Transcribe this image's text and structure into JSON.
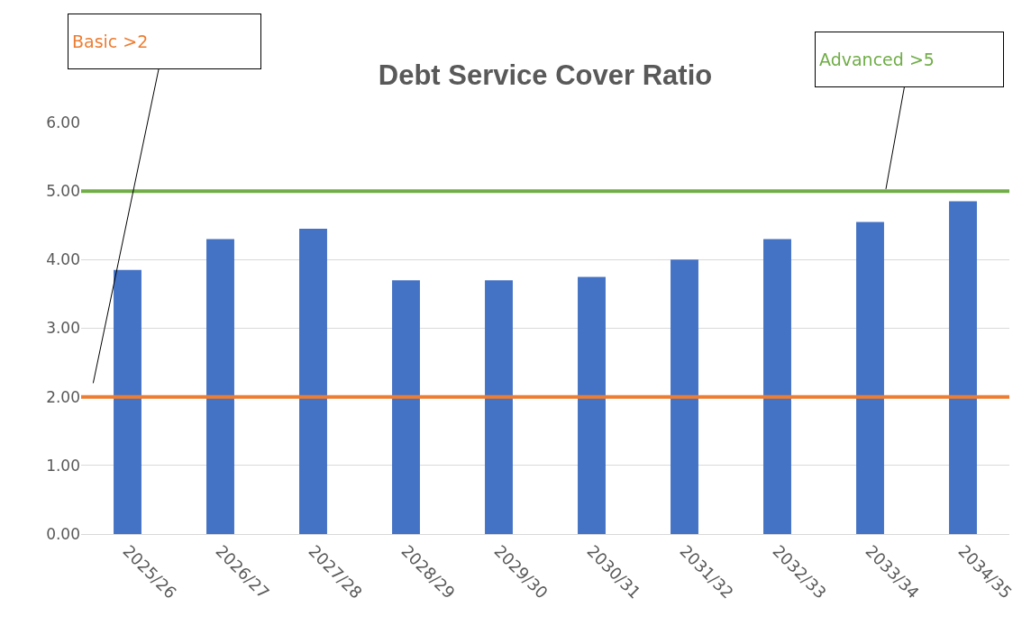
{
  "chart_data": {
    "type": "bar",
    "title": "Debt Service Cover Ratio",
    "categories": [
      "2025/26",
      "2026/27",
      "2027/28",
      "2028/29",
      "2029/30",
      "2030/31",
      "2031/32",
      "2032/33",
      "2033/34",
      "2034/35"
    ],
    "values": [
      3.85,
      4.3,
      4.45,
      3.7,
      3.7,
      3.75,
      4.0,
      4.3,
      4.55,
      4.85
    ],
    "color": "#4472c4",
    "ylim": [
      0,
      6
    ],
    "yticks": [
      {
        "value": 0,
        "label": "0.00"
      },
      {
        "value": 1,
        "label": "1.00"
      },
      {
        "value": 2,
        "label": "2.00"
      },
      {
        "value": 3,
        "label": "3.00"
      },
      {
        "value": 4,
        "label": "4.00"
      },
      {
        "value": 5,
        "label": "5.00"
      },
      {
        "value": 6,
        "label": "6.00"
      }
    ],
    "grid": "y",
    "legend": false,
    "ref_lines": [
      {
        "axis": "y",
        "value": 2,
        "label": "Basic >2",
        "color": "#ed7d31"
      },
      {
        "axis": "y",
        "value": 5,
        "label": "Advanced >5",
        "color": "#70ad47"
      }
    ]
  }
}
